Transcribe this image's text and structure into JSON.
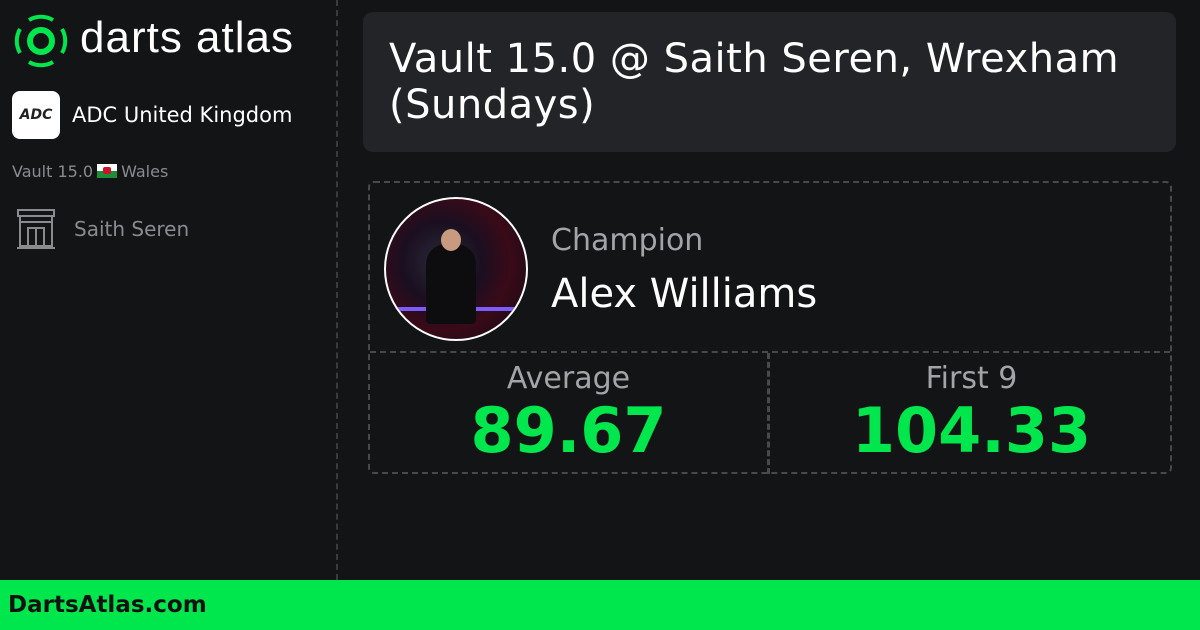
{
  "brand": {
    "name": "darts atlas",
    "accent": "#00e64d"
  },
  "sidebar": {
    "organisation": "ADC United Kingdom",
    "organisation_logo_text": "ADC",
    "series": "Vault 15.0",
    "country": "Wales",
    "venue": "Saith Seren"
  },
  "header": {
    "title": "Vault 15.0 @ Saith Seren, Wrexham (Sundays)"
  },
  "champion": {
    "label": "Champion",
    "name": "Alex Williams"
  },
  "stats": [
    {
      "label": "Average",
      "value": "89.67"
    },
    {
      "label": "First 9",
      "value": "104.33"
    }
  ],
  "footer": {
    "site": "DartsAtlas.com"
  }
}
